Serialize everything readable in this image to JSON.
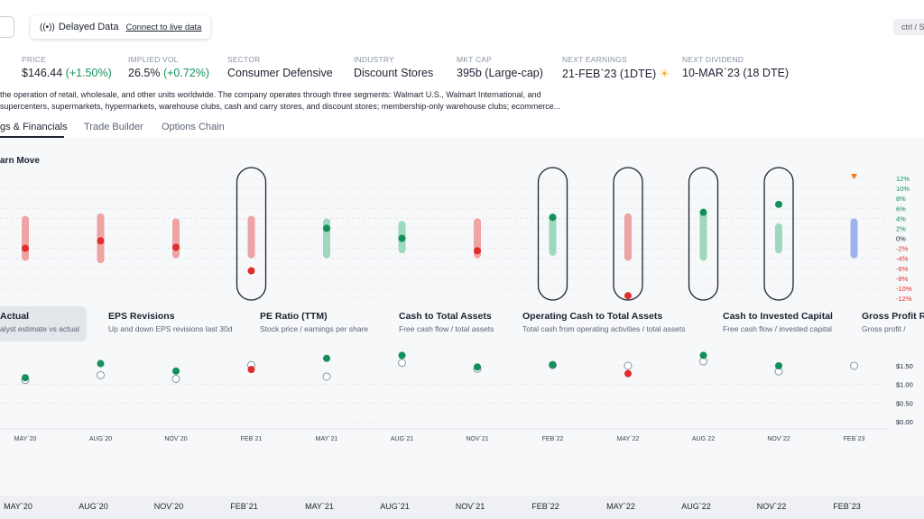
{
  "header": {
    "delayed_label": "Delayed Data",
    "connect_link": "Connect to live data",
    "shortcut": "ctrl / S"
  },
  "stats": [
    {
      "label": "PRICE",
      "value": "$146.44",
      "change": "(+1.50%)"
    },
    {
      "label": "IMPLIED VOL",
      "value": "26.5%",
      "change": "(+0.72%)"
    },
    {
      "label": "SECTOR",
      "value": "Consumer Defensive"
    },
    {
      "label": "INDUSTRY",
      "value": "Discount Stores"
    },
    {
      "label": "MKT CAP",
      "value": "395b (Large-cap)"
    },
    {
      "label": "NEXT EARNINGS",
      "value": "21-FEB`23 (1DTE)"
    },
    {
      "label": "NEXT DIVIDEND",
      "value": "10-MAR`23 (18 DTE)"
    }
  ],
  "description": {
    "line1": "the operation of retail, wholesale, and other units worldwide. The company operates through three segments: Walmart U.S., Walmart International, and",
    "line2": "supercenters, supermarkets, hypermarkets, warehouse clubs, cash and carry stores, and discount stores; membership-only warehouse clubs; ecommerce..."
  },
  "tabs": [
    "gs & Financials",
    "Trade Builder",
    "Options Chain"
  ],
  "earn_move": {
    "title": "arn Move",
    "y_ticks": [
      "12%",
      "10%",
      "8%",
      "6%",
      "4%",
      "2%",
      "0%",
      "-2%",
      "-4%",
      "-6%",
      "-8%",
      "-10%",
      "-12%"
    ],
    "quarters": [
      "MAY`20",
      "AUG`20",
      "NOV`20",
      "FEB`21",
      "MAY`21",
      "AUG`21",
      "NOV`21",
      "FEB`22",
      "MAY`22",
      "AUG`22",
      "NOV`22",
      "FEB`23"
    ],
    "range_low": [
      -4.5,
      -5,
      -4,
      -4,
      -4,
      -3,
      -4,
      -3.5,
      -4.5,
      -4.5,
      -3,
      -4
    ],
    "range_high": [
      4.5,
      5,
      4,
      4.5,
      4,
      3.5,
      4,
      5,
      5,
      5.5,
      3,
      4
    ],
    "actual": [
      -2,
      -0.5,
      -1.8,
      -6.5,
      2,
      0,
      -2.5,
      4.2,
      -11.5,
      5.2,
      6.8,
      null
    ],
    "highlighted": [
      false,
      false,
      false,
      true,
      false,
      false,
      false,
      true,
      true,
      true,
      true,
      false
    ],
    "colors": {
      "green": "#12905a",
      "green_bar": "#9ed8bd",
      "red": "#e02d2d",
      "red_bar": "#efa3a3",
      "blue_bar": "#9fb4ee",
      "orange": "#ee7a22"
    }
  },
  "metrics": [
    {
      "title": "Actual",
      "subtitle": "alyst estimate vs actual"
    },
    {
      "title": "EPS Revisions",
      "subtitle": "Up and down EPS revisions last 30d"
    },
    {
      "title": "PE Ratio (TTM)",
      "subtitle": "Stock price / earnings per share"
    },
    {
      "title": "Cash to Total Assets",
      "subtitle": "Free cash flow / total assets"
    },
    {
      "title": "Operating Cash to Total Assets",
      "subtitle": "Total cash from operating activities / total assets"
    },
    {
      "title": "Cash to Invested Capital",
      "subtitle": "Free cash flow / invested capital"
    },
    {
      "title": "Gross Profit Ra",
      "subtitle": "Gross profit / "
    }
  ],
  "eps_chart": {
    "y_ticks": [
      "$1.50",
      "$1.00",
      "$0.50",
      "$0.00"
    ],
    "estimate": [
      1.12,
      1.25,
      1.15,
      1.52,
      1.21,
      1.58,
      1.42,
      1.52,
      1.5,
      1.62,
      1.35,
      1.5
    ],
    "actual": [
      1.18,
      1.56,
      1.36,
      1.4,
      1.7,
      1.78,
      1.47,
      1.53,
      1.29,
      1.78,
      1.5,
      null
    ],
    "beat": [
      true,
      true,
      true,
      false,
      true,
      true,
      true,
      true,
      false,
      true,
      true,
      null
    ]
  },
  "bottom_axis": [
    "MAY`20",
    "AUG`20",
    "NOV`20",
    "FEB`21",
    "MAY`21",
    "AUG`21",
    "NOV`21",
    "FEB`22",
    "MAY`22",
    "AUG`22",
    "NOV`22",
    "FEB`23"
  ]
}
